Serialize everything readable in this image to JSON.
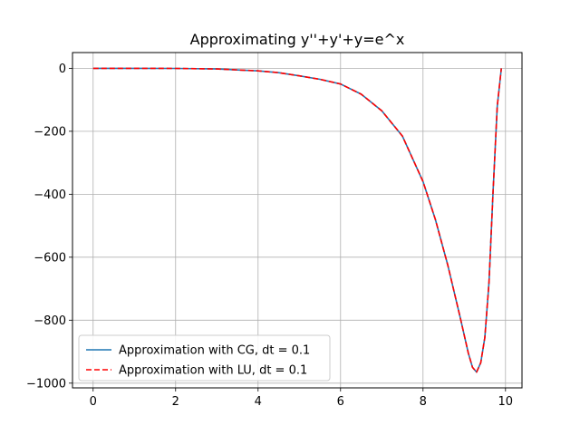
{
  "chart_data": {
    "type": "line",
    "title": "Approximating y''+y'+y=e^x",
    "xlabel": "",
    "ylabel": "",
    "xlim": [
      -0.5,
      10.4
    ],
    "ylim": [
      -1015,
      50
    ],
    "xticks": [
      0,
      2,
      4,
      6,
      8,
      10
    ],
    "yticks": [
      0,
      -200,
      -400,
      -600,
      -800,
      -1000
    ],
    "xtick_labels": [
      "0",
      "2",
      "4",
      "6",
      "8",
      "10"
    ],
    "ytick_labels": [
      "0",
      "−200",
      "−400",
      "−600",
      "−800",
      "−1000"
    ],
    "grid": true,
    "legend_position": "lower-left",
    "x": [
      0,
      1,
      2,
      3,
      4,
      4.5,
      5,
      5.5,
      6,
      6.5,
      7,
      7.5,
      8,
      8.3,
      8.6,
      8.9,
      9.1,
      9.2,
      9.3,
      9.4,
      9.5,
      9.6,
      9.7,
      9.8,
      9.9
    ],
    "series": [
      {
        "name": "Approximation with CG, dt = 0.1",
        "color": "#1f77b4",
        "style": "solid",
        "values": [
          0,
          0,
          -0.5,
          -2,
          -8,
          -14,
          -24,
          -35,
          -50,
          -82,
          -135,
          -215,
          -360,
          -480,
          -625,
          -790,
          -905,
          -950,
          -965,
          -935,
          -855,
          -680,
          -390,
          -120,
          0
        ]
      },
      {
        "name": "Approximation with LU, dt = 0.1",
        "color": "#ff0000",
        "style": "dashed",
        "values": [
          0,
          0,
          -0.5,
          -2,
          -8,
          -14,
          -24,
          -35,
          -50,
          -82,
          -135,
          -215,
          -360,
          -480,
          -625,
          -790,
          -905,
          -950,
          -965,
          -935,
          -855,
          -680,
          -390,
          -120,
          0
        ]
      }
    ]
  }
}
